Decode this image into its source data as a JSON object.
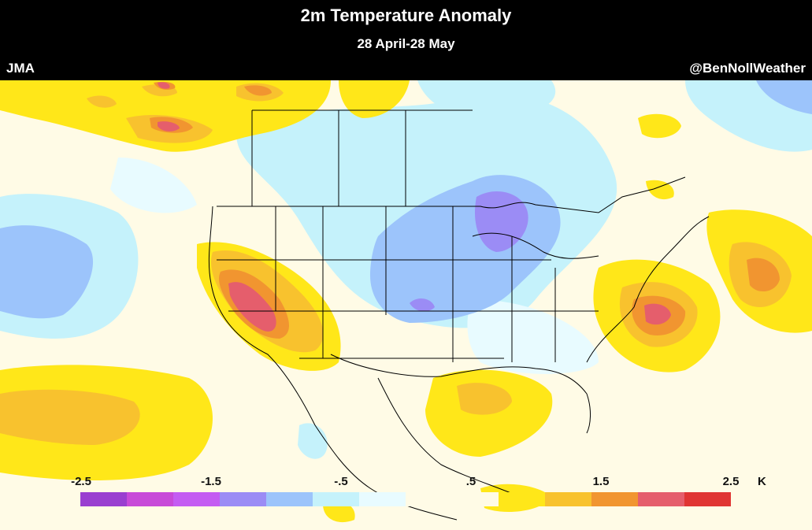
{
  "header": {
    "title": "2m Temperature Anomaly",
    "subtitle": "28 April-28 May",
    "model": "JMA",
    "credit": "@BenNollWeather"
  },
  "legend": {
    "tick_labels": [
      "-2.5",
      "-1.5",
      "-.5",
      ".5",
      "1.5",
      "2.5"
    ],
    "unit": "K",
    "colors": [
      "#9a3fd0",
      "#c84ad8",
      "#c45cf2",
      "#9b8cf5",
      "#9cc4fb",
      "#c5f2fb",
      "#e8fbff",
      "#fffbe6",
      "#fffbe6",
      "#ffe719",
      "#f8c22e",
      "#f19530",
      "#e55e6c",
      "#e03533"
    ]
  }
}
